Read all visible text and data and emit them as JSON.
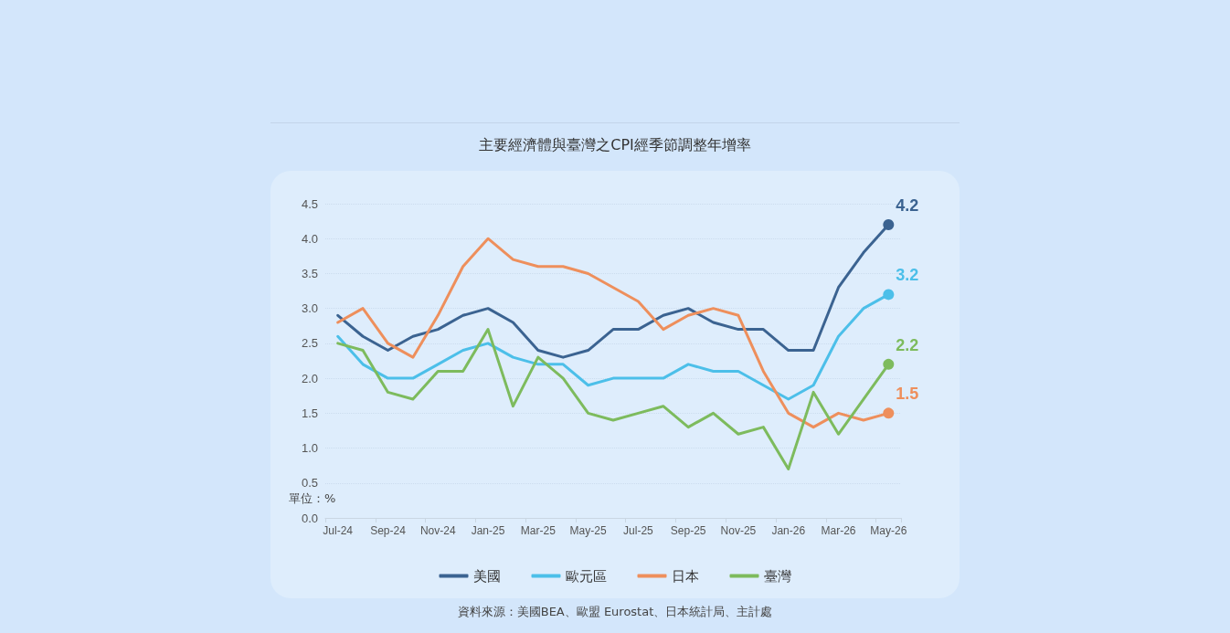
{
  "chart_data": {
    "type": "line",
    "title": "主要經濟體與臺灣之CPI經季節調整年增率",
    "categories": [
      "Jul-24",
      null,
      "Sep-24",
      null,
      "Nov-24",
      null,
      "Jan-25",
      null,
      "Mar-25",
      null,
      "May-25",
      null,
      "Jul-25",
      null,
      "Sep-25",
      null,
      "Nov-25",
      null,
      "Jan-26",
      null,
      "Mar-26",
      null,
      "May-26"
    ],
    "series": [
      {
        "name": "美國",
        "color": "#3b6391",
        "values": [
          2.9,
          2.6,
          2.4,
          2.6,
          2.7,
          2.9,
          3.0,
          2.8,
          2.4,
          2.3,
          2.4,
          2.7,
          2.7,
          2.9,
          3.0,
          2.8,
          2.7,
          2.7,
          2.4,
          2.4,
          3.3,
          3.8,
          4.2
        ],
        "value_labels": [
          null,
          null,
          null,
          null,
          null,
          null,
          null,
          null,
          null,
          null,
          null,
          null,
          null,
          null,
          null,
          null,
          null,
          null,
          null,
          null,
          null,
          null,
          "4.2"
        ]
      },
      {
        "name": "歐元區",
        "color": "#4cbfe9",
        "values": [
          2.6,
          2.2,
          2.0,
          2.0,
          2.2,
          2.4,
          2.5,
          2.3,
          2.2,
          2.2,
          1.9,
          2.0,
          2.0,
          2.0,
          2.2,
          2.1,
          2.1,
          1.9,
          1.7,
          1.9,
          2.6,
          3.0,
          3.2
        ],
        "value_labels": [
          null,
          null,
          null,
          null,
          null,
          null,
          null,
          null,
          null,
          null,
          null,
          null,
          null,
          null,
          null,
          null,
          null,
          null,
          null,
          null,
          null,
          null,
          "3.2"
        ]
      },
      {
        "name": "日本",
        "color": "#ee8f5c",
        "values": [
          2.8,
          3.0,
          2.5,
          2.3,
          2.9,
          3.6,
          4.0,
          3.7,
          3.6,
          3.6,
          3.5,
          3.3,
          3.1,
          2.7,
          2.9,
          3.0,
          2.9,
          2.1,
          1.5,
          1.3,
          1.5,
          1.4,
          1.5
        ],
        "value_labels": [
          null,
          null,
          null,
          null,
          null,
          null,
          null,
          null,
          null,
          null,
          null,
          null,
          null,
          null,
          null,
          null,
          null,
          null,
          null,
          null,
          null,
          null,
          "1.5"
        ]
      },
      {
        "name": "臺灣",
        "color": "#7dbb5d",
        "values": [
          2.5,
          2.4,
          1.8,
          1.7,
          2.1,
          2.1,
          2.7,
          1.6,
          2.3,
          2.0,
          1.5,
          1.4,
          1.5,
          1.6,
          1.3,
          1.5,
          1.2,
          1.3,
          0.7,
          1.8,
          1.2,
          1.7,
          2.2
        ],
        "value_labels": [
          null,
          null,
          null,
          null,
          null,
          null,
          null,
          null,
          null,
          null,
          null,
          null,
          null,
          null,
          null,
          null,
          null,
          null,
          null,
          null,
          null,
          null,
          "2.2"
        ]
      }
    ],
    "ylim": [
      0,
      4.5
    ],
    "yticks": [
      {
        "value": 0,
        "label": "0.0"
      },
      {
        "value": 0.5,
        "label": "0.5"
      },
      {
        "value": 1,
        "label": "1.0"
      },
      {
        "value": 1.5,
        "label": "1.5"
      },
      {
        "value": 2,
        "label": "2.0"
      },
      {
        "value": 2.5,
        "label": "2.5"
      },
      {
        "value": 3,
        "label": "3.0"
      },
      {
        "value": 3.5,
        "label": "3.5"
      },
      {
        "value": 4,
        "label": "4.0"
      },
      {
        "value": 4.5,
        "label": "4.5"
      }
    ],
    "grid": "y",
    "legend": "bottom",
    "line_style": "solid",
    "annotations": [
      "單位：%",
      "資料來源：美國BEA、歐盟 Eurostat、日本統計局、主計處"
    ]
  }
}
